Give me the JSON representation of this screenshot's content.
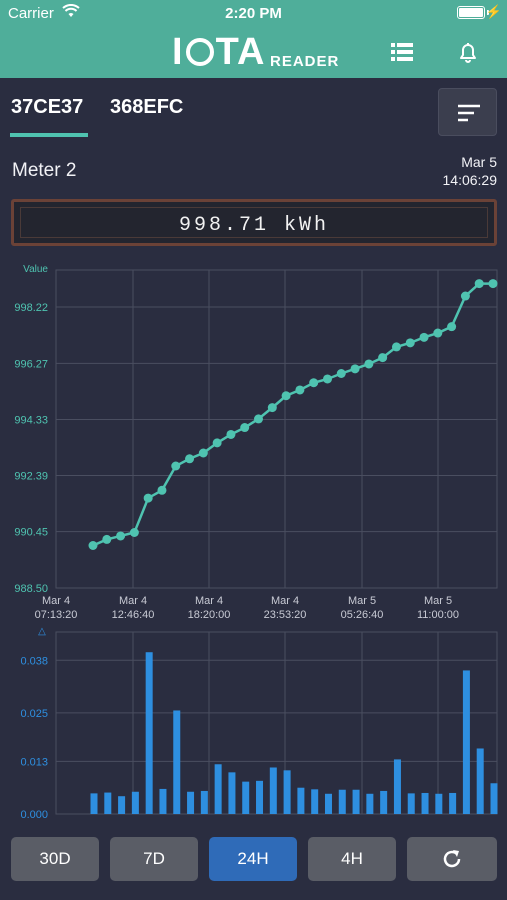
{
  "status_bar": {
    "carrier": "Carrier",
    "time": "2:20 PM"
  },
  "header": {
    "logo_text_left": "I",
    "logo_text_right": "TA",
    "logo_sub": "READER",
    "icons": [
      "list-icon",
      "bell-icon"
    ]
  },
  "tabs": [
    {
      "label": "37CE37",
      "active": true
    },
    {
      "label": "368EFC",
      "active": false
    }
  ],
  "meter": {
    "name": "Meter 2",
    "date": "Mar 5",
    "time": "14:06:29",
    "reading": "998.71 kWh"
  },
  "colors": {
    "accent": "#4fae9a",
    "line": "#4fc3b0",
    "bar": "#2e8fe0",
    "active_button": "#2f6bb8"
  },
  "chart_data": [
    {
      "type": "line",
      "ylabel": "Value",
      "y_ticks": [
        "998.22",
        "996.27",
        "994.33",
        "992.39",
        "990.45",
        "988.50"
      ],
      "ylim": [
        988.5,
        999.5
      ],
      "x_tick_labels": [
        [
          "Mar 4",
          "07:13:20"
        ],
        [
          "Mar 4",
          "12:46:40"
        ],
        [
          "Mar 4",
          "18:20:00"
        ],
        [
          "Mar 4",
          "23:53:20"
        ],
        [
          "Mar 5",
          "05:26:40"
        ],
        [
          "Mar 5",
          "11:00:00"
        ]
      ],
      "values": [
        989.97,
        990.18,
        990.3,
        990.42,
        991.61,
        991.88,
        992.72,
        992.97,
        993.17,
        993.52,
        993.81,
        994.05,
        994.35,
        994.74,
        995.15,
        995.35,
        995.6,
        995.73,
        995.92,
        996.08,
        996.25,
        996.47,
        996.84,
        996.98,
        997.17,
        997.32,
        997.54,
        998.6,
        999.03,
        999.03
      ],
      "grid": true
    },
    {
      "type": "bar",
      "ylabel": "△",
      "y_ticks": [
        "0.038",
        "0.025",
        "0.013",
        "0.000"
      ],
      "ylim": [
        0,
        0.045
      ],
      "values": [
        0.0051,
        0.0053,
        0.0044,
        0.0055,
        0.04,
        0.0062,
        0.0256,
        0.0055,
        0.0057,
        0.0123,
        0.0103,
        0.008,
        0.0082,
        0.0115,
        0.0108,
        0.0065,
        0.0061,
        0.005,
        0.006,
        0.006,
        0.005,
        0.0057,
        0.0135,
        0.0051,
        0.0052,
        0.005,
        0.0052,
        0.0355,
        0.0162,
        0.0076
      ],
      "grid": true
    }
  ],
  "range_buttons": [
    {
      "label": "30D",
      "active": false
    },
    {
      "label": "7D",
      "active": false
    },
    {
      "label": "24H",
      "active": true
    },
    {
      "label": "4H",
      "active": false
    }
  ],
  "refresh_icon": "refresh-icon"
}
